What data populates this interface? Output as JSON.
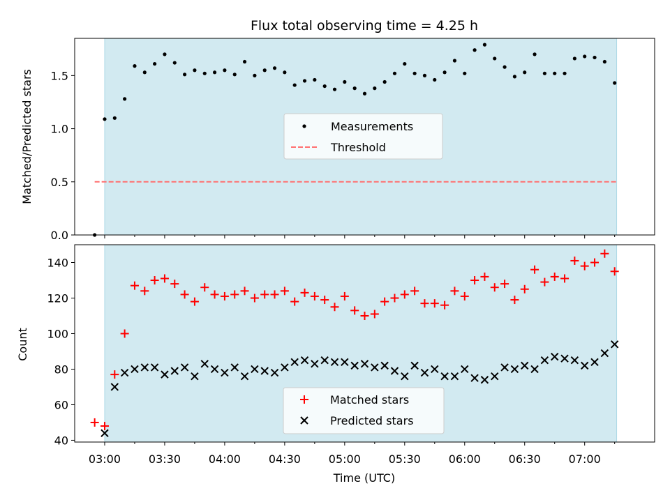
{
  "title": "Flux total observing time = 4.25 h",
  "xlabel": "Time (UTC)",
  "x_ticks": [
    "03:00",
    "03:30",
    "04:00",
    "04:30",
    "05:00",
    "05:30",
    "06:00",
    "06:30",
    "07:00"
  ],
  "colors": {
    "shade": "#add8e6",
    "matched": "#ff0000",
    "predicted": "#000000",
    "threshold": "#ff7070",
    "measurements": "#000000"
  },
  "chart_data": [
    {
      "type": "scatter",
      "ylabel": "Matched/Predicted stars",
      "xlim": [
        "02:45",
        "07:35"
      ],
      "ylim": [
        0,
        1.85
      ],
      "y_ticks": [
        "0.0",
        "0.5",
        "1.0",
        "1.5"
      ],
      "shaded_span": [
        "03:00",
        "07:16"
      ],
      "legend": {
        "position": "center",
        "entries": [
          "Measurements",
          "Threshold"
        ]
      },
      "threshold": {
        "name": "Threshold",
        "y": 0.5,
        "x_range": [
          "02:55",
          "07:16"
        ],
        "style": "dashed"
      },
      "series": [
        {
          "name": "Measurements",
          "marker": "dot",
          "x": [
            "02:55",
            "03:00",
            "03:05",
            "03:10",
            "03:15",
            "03:20",
            "03:25",
            "03:30",
            "03:35",
            "03:40",
            "03:45",
            "03:50",
            "03:55",
            "04:00",
            "04:05",
            "04:10",
            "04:15",
            "04:20",
            "04:25",
            "04:30",
            "04:35",
            "04:40",
            "04:45",
            "04:50",
            "04:55",
            "05:00",
            "05:05",
            "05:10",
            "05:15",
            "05:20",
            "05:25",
            "05:30",
            "05:35",
            "05:40",
            "05:45",
            "05:50",
            "05:55",
            "06:00",
            "06:05",
            "06:10",
            "06:15",
            "06:20",
            "06:25",
            "06:30",
            "06:35",
            "06:40",
            "06:45",
            "06:50",
            "06:55",
            "07:00",
            "07:05",
            "07:10",
            "07:15"
          ],
          "y": [
            0.0,
            1.09,
            1.1,
            1.28,
            1.59,
            1.53,
            1.61,
            1.7,
            1.62,
            1.51,
            1.55,
            1.52,
            1.53,
            1.55,
            1.51,
            1.63,
            1.5,
            1.55,
            1.57,
            1.53,
            1.41,
            1.45,
            1.46,
            1.4,
            1.37,
            1.44,
            1.38,
            1.33,
            1.38,
            1.44,
            1.52,
            1.61,
            1.52,
            1.5,
            1.46,
            1.53,
            1.64,
            1.52,
            1.74,
            1.79,
            1.66,
            1.58,
            1.49,
            1.53,
            1.7,
            1.52,
            1.52,
            1.52,
            1.66,
            1.68,
            1.67,
            1.63,
            1.43
          ]
        }
      ]
    },
    {
      "type": "scatter",
      "ylabel": "Count",
      "xlim": [
        "02:45",
        "07:35"
      ],
      "ylim": [
        39,
        150
      ],
      "y_ticks": [
        "40",
        "60",
        "80",
        "100",
        "120",
        "140"
      ],
      "shaded_span": [
        "03:00",
        "07:16"
      ],
      "legend": {
        "position": "lower center",
        "entries": [
          "Matched stars",
          "Predicted stars"
        ]
      },
      "series": [
        {
          "name": "Matched stars",
          "marker": "plus",
          "x": [
            "02:55",
            "03:00",
            "03:05",
            "03:10",
            "03:15",
            "03:20",
            "03:25",
            "03:30",
            "03:35",
            "03:40",
            "03:45",
            "03:50",
            "03:55",
            "04:00",
            "04:05",
            "04:10",
            "04:15",
            "04:20",
            "04:25",
            "04:30",
            "04:35",
            "04:40",
            "04:45",
            "04:50",
            "04:55",
            "05:00",
            "05:05",
            "05:10",
            "05:15",
            "05:20",
            "05:25",
            "05:30",
            "05:35",
            "05:40",
            "05:45",
            "05:50",
            "05:55",
            "06:00",
            "06:05",
            "06:10",
            "06:15",
            "06:20",
            "06:25",
            "06:30",
            "06:35",
            "06:40",
            "06:45",
            "06:50",
            "06:55",
            "07:00",
            "07:05",
            "07:10",
            "07:15"
          ],
          "y": [
            50,
            48,
            77,
            100,
            127,
            124,
            130,
            131,
            128,
            122,
            118,
            126,
            122,
            121,
            122,
            124,
            120,
            122,
            122,
            124,
            118,
            123,
            121,
            119,
            115,
            121,
            113,
            110,
            111,
            118,
            120,
            122,
            124,
            117,
            117,
            116,
            124,
            121,
            130,
            132,
            126,
            128,
            119,
            125,
            136,
            129,
            132,
            131,
            141,
            138,
            140,
            145,
            135
          ]
        },
        {
          "name": "Predicted stars",
          "marker": "x",
          "x": [
            "03:00",
            "03:05",
            "03:10",
            "03:15",
            "03:20",
            "03:25",
            "03:30",
            "03:35",
            "03:40",
            "03:45",
            "03:50",
            "03:55",
            "04:00",
            "04:05",
            "04:10",
            "04:15",
            "04:20",
            "04:25",
            "04:30",
            "04:35",
            "04:40",
            "04:45",
            "04:50",
            "04:55",
            "05:00",
            "05:05",
            "05:10",
            "05:15",
            "05:20",
            "05:25",
            "05:30",
            "05:35",
            "05:40",
            "05:45",
            "05:50",
            "05:55",
            "06:00",
            "06:05",
            "06:10",
            "06:15",
            "06:20",
            "06:25",
            "06:30",
            "06:35",
            "06:40",
            "06:45",
            "06:50",
            "06:55",
            "07:00",
            "07:05",
            "07:10",
            "07:15"
          ],
          "y": [
            44,
            70,
            78,
            80,
            81,
            81,
            77,
            79,
            81,
            76,
            83,
            80,
            78,
            81,
            76,
            80,
            79,
            78,
            81,
            84,
            85,
            83,
            85,
            84,
            84,
            82,
            83,
            81,
            82,
            79,
            76,
            82,
            78,
            80,
            76,
            76,
            80,
            75,
            74,
            76,
            81,
            80,
            82,
            80,
            85,
            87,
            86,
            85,
            82,
            84,
            89,
            94
          ]
        }
      ]
    }
  ]
}
